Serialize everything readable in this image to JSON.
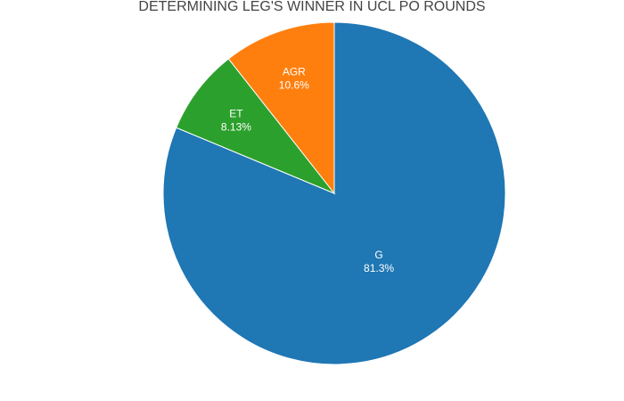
{
  "chart_data": {
    "type": "pie",
    "title": "DETERMINING LEG'S WINNER IN UCL PO ROUNDS",
    "slices": [
      {
        "label": "G",
        "percent_label": "81.3%",
        "value": 81.3,
        "color": "#1f77b4"
      },
      {
        "label": "ET",
        "percent_label": "8.13%",
        "value": 8.13,
        "color": "#2ca02c"
      },
      {
        "label": "AGR",
        "percent_label": "10.6%",
        "value": 10.6,
        "color": "#ff7f0e"
      }
    ],
    "legend": "none"
  }
}
